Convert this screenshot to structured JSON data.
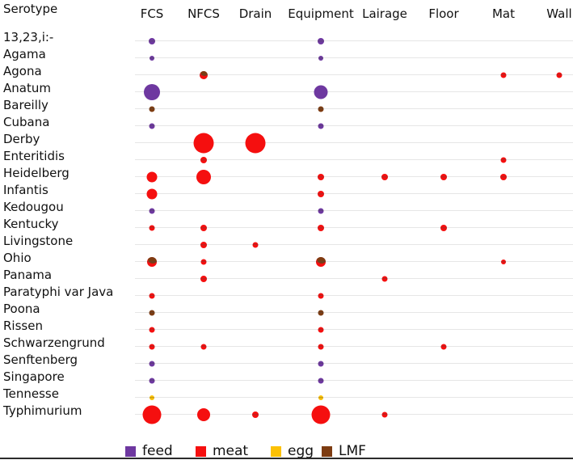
{
  "colors": {
    "feed": "#6e38a0",
    "meat": "#f50f0f",
    "egg": "#fcc105",
    "LMF": "#7d3c12",
    "gridline": "#e6e6e6",
    "text": "#111111"
  },
  "legend": {
    "items": [
      {
        "label": "feed",
        "category": "feed"
      },
      {
        "label": "meat",
        "category": "meat"
      },
      {
        "label": "egg",
        "category": "egg"
      },
      {
        "label": "LMF",
        "category": "LMF"
      }
    ]
  },
  "chart_data": {
    "type": "scatter",
    "subtype": "bubble-matrix",
    "row_axis_title": "Serotype",
    "columns": [
      "FCS",
      "NFCS",
      "Drain",
      "Equipment",
      "Lairage",
      "Floor",
      "Mat",
      "Wall"
    ],
    "rows": [
      "13,23,i:-",
      "Agama",
      "Agona",
      "Anatum",
      "Bareilly",
      "Cubana",
      "Derby",
      "Enteritidis",
      "Heidelberg",
      "Infantis",
      "Kedougou",
      "Kentucky",
      "Livingstone",
      "Ohio",
      "Panama",
      "Paratyphi var Java",
      "Poona",
      "Rissen",
      "Schwarzengrund",
      "Senftenberg",
      "Singapore",
      "Tennesse",
      "Typhimurium"
    ],
    "legend_entries": [
      "feed",
      "meat",
      "egg",
      "LMF"
    ],
    "size_encoding": "bubble diameter in pixels (relative frequency; no numeric scale shown)",
    "points": [
      {
        "row": "13,23,i:-",
        "col": "FCS",
        "category": "feed",
        "d": 8
      },
      {
        "row": "13,23,i:-",
        "col": "Equipment",
        "category": "feed",
        "d": 8
      },
      {
        "row": "Agama",
        "col": "FCS",
        "category": "feed",
        "d": 6
      },
      {
        "row": "Agama",
        "col": "Equipment",
        "category": "feed",
        "d": 6
      },
      {
        "row": "Agona",
        "col": "NFCS",
        "category": "meat",
        "d": 10,
        "overlay": "LMF"
      },
      {
        "row": "Agona",
        "col": "Mat",
        "category": "meat",
        "d": 7
      },
      {
        "row": "Agona",
        "col": "Wall",
        "category": "meat",
        "d": 7
      },
      {
        "row": "Anatum",
        "col": "FCS",
        "category": "feed",
        "d": 20
      },
      {
        "row": "Anatum",
        "col": "Equipment",
        "category": "feed",
        "d": 17
      },
      {
        "row": "Bareilly",
        "col": "FCS",
        "category": "LMF",
        "d": 7
      },
      {
        "row": "Bareilly",
        "col": "Equipment",
        "category": "LMF",
        "d": 7
      },
      {
        "row": "Cubana",
        "col": "FCS",
        "category": "feed",
        "d": 7
      },
      {
        "row": "Cubana",
        "col": "Equipment",
        "category": "feed",
        "d": 7
      },
      {
        "row": "Derby",
        "col": "NFCS",
        "category": "meat",
        "d": 25
      },
      {
        "row": "Derby",
        "col": "Drain",
        "category": "meat",
        "d": 25
      },
      {
        "row": "Enteritidis",
        "col": "NFCS",
        "category": "meat",
        "d": 8
      },
      {
        "row": "Enteritidis",
        "col": "Mat",
        "category": "meat",
        "d": 7
      },
      {
        "row": "Heidelberg",
        "col": "FCS",
        "category": "meat",
        "d": 13
      },
      {
        "row": "Heidelberg",
        "col": "NFCS",
        "category": "meat",
        "d": 18
      },
      {
        "row": "Heidelberg",
        "col": "Equipment",
        "category": "meat",
        "d": 8
      },
      {
        "row": "Heidelberg",
        "col": "Lairage",
        "category": "meat",
        "d": 8
      },
      {
        "row": "Heidelberg",
        "col": "Floor",
        "category": "meat",
        "d": 8
      },
      {
        "row": "Heidelberg",
        "col": "Mat",
        "category": "meat",
        "d": 8
      },
      {
        "row": "Infantis",
        "col": "FCS",
        "category": "meat",
        "d": 13
      },
      {
        "row": "Infantis",
        "col": "Equipment",
        "category": "meat",
        "d": 8
      },
      {
        "row": "Kedougou",
        "col": "FCS",
        "category": "feed",
        "d": 7
      },
      {
        "row": "Kedougou",
        "col": "Equipment",
        "category": "feed",
        "d": 7
      },
      {
        "row": "Kentucky",
        "col": "FCS",
        "category": "meat",
        "d": 7
      },
      {
        "row": "Kentucky",
        "col": "NFCS",
        "category": "meat",
        "d": 8
      },
      {
        "row": "Kentucky",
        "col": "Equipment",
        "category": "meat",
        "d": 8
      },
      {
        "row": "Kentucky",
        "col": "Floor",
        "category": "meat",
        "d": 8
      },
      {
        "row": "Livingstone",
        "col": "NFCS",
        "category": "meat",
        "d": 8
      },
      {
        "row": "Livingstone",
        "col": "Drain",
        "category": "meat",
        "d": 7
      },
      {
        "row": "Ohio",
        "col": "FCS",
        "category": "meat",
        "d": 12,
        "overlay": "LMF"
      },
      {
        "row": "Ohio",
        "col": "NFCS",
        "category": "meat",
        "d": 7
      },
      {
        "row": "Ohio",
        "col": "Equipment",
        "category": "meat",
        "d": 12,
        "overlay": "LMF"
      },
      {
        "row": "Ohio",
        "col": "Mat",
        "category": "meat",
        "d": 6
      },
      {
        "row": "Panama",
        "col": "NFCS",
        "category": "meat",
        "d": 8
      },
      {
        "row": "Panama",
        "col": "Lairage",
        "category": "meat",
        "d": 7
      },
      {
        "row": "Paratyphi var Java",
        "col": "FCS",
        "category": "meat",
        "d": 7
      },
      {
        "row": "Paratyphi var Java",
        "col": "Equipment",
        "category": "meat",
        "d": 7
      },
      {
        "row": "Poona",
        "col": "FCS",
        "category": "LMF",
        "d": 7
      },
      {
        "row": "Poona",
        "col": "Equipment",
        "category": "LMF",
        "d": 7
      },
      {
        "row": "Rissen",
        "col": "FCS",
        "category": "meat",
        "d": 7
      },
      {
        "row": "Rissen",
        "col": "Equipment",
        "category": "meat",
        "d": 7
      },
      {
        "row": "Schwarzengrund",
        "col": "FCS",
        "category": "meat",
        "d": 7
      },
      {
        "row": "Schwarzengrund",
        "col": "NFCS",
        "category": "meat",
        "d": 7
      },
      {
        "row": "Schwarzengrund",
        "col": "Equipment",
        "category": "meat",
        "d": 7
      },
      {
        "row": "Schwarzengrund",
        "col": "Floor",
        "category": "meat",
        "d": 7
      },
      {
        "row": "Senftenberg",
        "col": "FCS",
        "category": "feed",
        "d": 7
      },
      {
        "row": "Senftenberg",
        "col": "Equipment",
        "category": "feed",
        "d": 7
      },
      {
        "row": "Singapore",
        "col": "FCS",
        "category": "feed",
        "d": 7
      },
      {
        "row": "Singapore",
        "col": "Equipment",
        "category": "feed",
        "d": 7
      },
      {
        "row": "Tennesse",
        "col": "FCS",
        "category": "egg",
        "d": 6
      },
      {
        "row": "Tennesse",
        "col": "Equipment",
        "category": "egg",
        "d": 6
      },
      {
        "row": "Typhimurium",
        "col": "FCS",
        "category": "meat",
        "d": 23
      },
      {
        "row": "Typhimurium",
        "col": "NFCS",
        "category": "meat",
        "d": 16
      },
      {
        "row": "Typhimurium",
        "col": "Drain",
        "category": "meat",
        "d": 8
      },
      {
        "row": "Typhimurium",
        "col": "Equipment",
        "category": "meat",
        "d": 23
      },
      {
        "row": "Typhimurium",
        "col": "Lairage",
        "category": "meat",
        "d": 7
      }
    ]
  }
}
